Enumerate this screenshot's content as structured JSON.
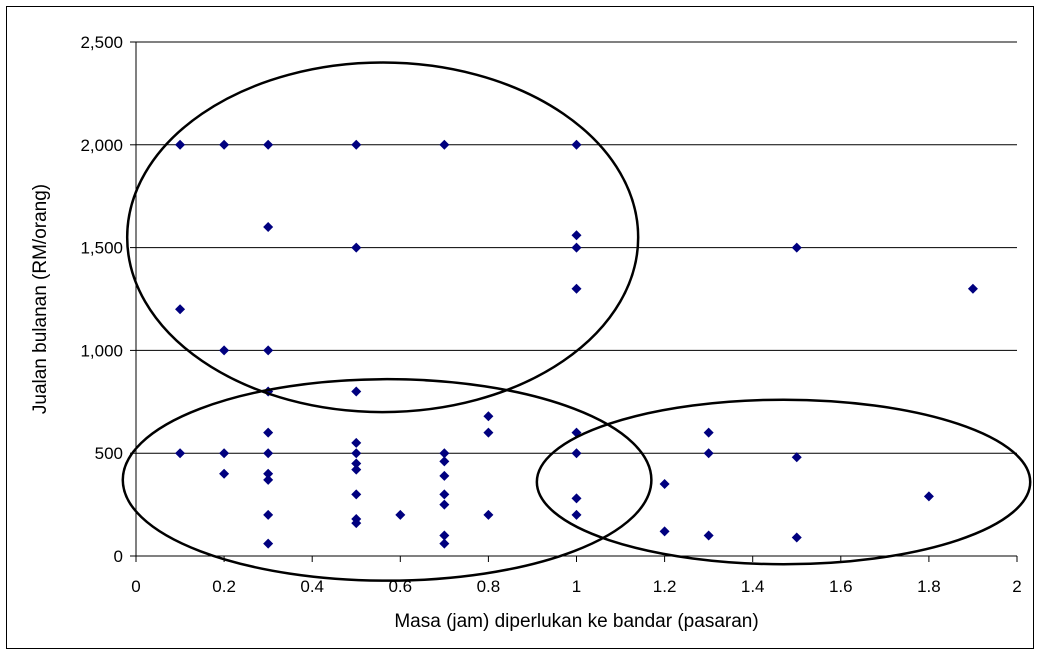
{
  "chart_data": {
    "type": "scatter",
    "title": "",
    "xlabel": "Masa (jam) diperlukan ke bandar (pasaran)",
    "ylabel": "Jualan bulanan (RM/orang)",
    "xlim": [
      0,
      2
    ],
    "ylim": [
      0,
      2500
    ],
    "x_ticks": [
      0,
      0.2,
      0.4,
      0.6,
      0.8,
      1,
      1.2,
      1.4,
      1.6,
      1.8,
      2
    ],
    "x_tick_labels": [
      "0",
      "0.2",
      "0.4",
      "0.6",
      "0.8",
      "1",
      "1.2",
      "1.4",
      "1.6",
      "1.8",
      "2"
    ],
    "y_ticks": [
      0,
      500,
      1000,
      1500,
      2000,
      2500
    ],
    "y_tick_labels": [
      "0",
      "500",
      "1,000",
      "1,500",
      "2,000",
      "2,500"
    ],
    "grid": "horizontal",
    "legend": "none",
    "marker": "diamond",
    "marker_color": "#00007f",
    "series": [
      {
        "points": [
          [
            0.1,
            2000
          ],
          [
            0.2,
            2000
          ],
          [
            0.3,
            2000
          ],
          [
            0.5,
            2000
          ],
          [
            0.7,
            2000
          ],
          [
            1.0,
            2000
          ],
          [
            0.3,
            1600
          ],
          [
            0.5,
            1500
          ],
          [
            1.0,
            1560
          ],
          [
            1.0,
            1500
          ],
          [
            1.5,
            1500
          ],
          [
            0.1,
            1200
          ],
          [
            1.0,
            1300
          ],
          [
            1.9,
            1300
          ],
          [
            0.2,
            1000
          ],
          [
            0.3,
            1000
          ],
          [
            0.3,
            800
          ],
          [
            0.5,
            800
          ],
          [
            0.8,
            680
          ],
          [
            0.8,
            600
          ],
          [
            0.3,
            600
          ],
          [
            1.0,
            600
          ],
          [
            1.3,
            600
          ],
          [
            0.5,
            550
          ],
          [
            0.5,
            500
          ],
          [
            0.7,
            500
          ],
          [
            0.1,
            500
          ],
          [
            0.2,
            500
          ],
          [
            0.3,
            500
          ],
          [
            1.0,
            500
          ],
          [
            1.3,
            500
          ],
          [
            1.5,
            480
          ],
          [
            0.5,
            450
          ],
          [
            0.7,
            460
          ],
          [
            0.5,
            420
          ],
          [
            0.2,
            400
          ],
          [
            0.3,
            400
          ],
          [
            0.7,
            390
          ],
          [
            0.3,
            370
          ],
          [
            1.2,
            350
          ],
          [
            0.5,
            300
          ],
          [
            0.7,
            300
          ],
          [
            1.8,
            290
          ],
          [
            1.0,
            280
          ],
          [
            0.7,
            250
          ],
          [
            0.3,
            200
          ],
          [
            0.6,
            200
          ],
          [
            0.8,
            200
          ],
          [
            1.0,
            200
          ],
          [
            0.5,
            180
          ],
          [
            0.5,
            160
          ],
          [
            1.2,
            120
          ],
          [
            1.3,
            100
          ],
          [
            0.7,
            100
          ],
          [
            1.5,
            90
          ],
          [
            0.3,
            60
          ],
          [
            0.7,
            60
          ]
        ]
      }
    ],
    "annotations": [
      {
        "shape": "ellipse",
        "cx": 0.56,
        "cy": 1550,
        "rx": 0.58,
        "ry": 850
      },
      {
        "shape": "ellipse",
        "cx": 0.57,
        "cy": 370,
        "rx": 0.6,
        "ry": 490
      },
      {
        "shape": "ellipse",
        "cx": 1.47,
        "cy": 360,
        "rx": 0.56,
        "ry": 400
      }
    ]
  }
}
